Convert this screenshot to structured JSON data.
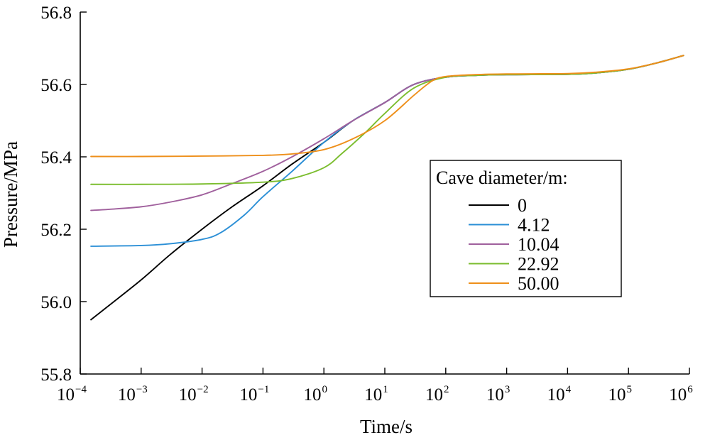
{
  "chart_data": {
    "type": "line",
    "xlabel": "Time/s",
    "ylabel": "Pressure/MPa",
    "x_scale": "log",
    "xlim": [
      0.0001,
      1000000
    ],
    "ylim": [
      55.8,
      56.8
    ],
    "x_ticks": [
      {
        "base": "10",
        "exp": "−4"
      },
      {
        "base": "10",
        "exp": "−3"
      },
      {
        "base": "10",
        "exp": "−2"
      },
      {
        "base": "10",
        "exp": "−1"
      },
      {
        "base": "10",
        "exp": "0"
      },
      {
        "base": "10",
        "exp": "1"
      },
      {
        "base": "10",
        "exp": "2"
      },
      {
        "base": "10",
        "exp": "3"
      },
      {
        "base": "10",
        "exp": "4"
      },
      {
        "base": "10",
        "exp": "5"
      },
      {
        "base": "10",
        "exp": "6"
      }
    ],
    "y_ticks": [
      "55.8",
      "56.0",
      "56.2",
      "56.4",
      "56.6",
      "56.8"
    ],
    "grid": false,
    "legend": {
      "title": "Cave diameter/m:",
      "position": "right"
    },
    "series": [
      {
        "name": "0",
        "color": "#000000",
        "x": [
          0.00015,
          0.0003,
          0.001,
          0.003,
          0.01,
          0.03,
          0.1,
          0.3,
          1,
          3,
          10,
          30,
          100,
          300,
          1000,
          10000,
          30000,
          100000,
          300000,
          800000
        ],
        "y": [
          55.95,
          55.99,
          56.06,
          56.13,
          56.2,
          56.26,
          56.32,
          56.38,
          56.44,
          56.5,
          56.55,
          56.6,
          56.62,
          56.625,
          56.627,
          56.628,
          56.632,
          56.642,
          56.66,
          56.68
        ]
      },
      {
        "name": "4.12",
        "color": "#2b8fd6",
        "x": [
          0.00015,
          0.001,
          0.003,
          0.01,
          0.02,
          0.05,
          0.1,
          0.3,
          1,
          3,
          10,
          30,
          100,
          300,
          1000,
          10000,
          30000,
          100000,
          300000,
          800000
        ],
        "y": [
          56.153,
          56.155,
          56.16,
          56.172,
          56.19,
          56.24,
          56.29,
          56.36,
          56.44,
          56.5,
          56.55,
          56.6,
          56.62,
          56.625,
          56.627,
          56.628,
          56.632,
          56.642,
          56.66,
          56.68
        ]
      },
      {
        "name": "10.04",
        "color": "#a0609d",
        "x": [
          0.00015,
          0.0003,
          0.001,
          0.003,
          0.01,
          0.03,
          0.1,
          0.3,
          1,
          3,
          10,
          30,
          100,
          300,
          1000,
          10000,
          30000,
          100000,
          300000,
          800000
        ],
        "y": [
          56.252,
          56.255,
          56.262,
          56.275,
          56.295,
          56.325,
          56.36,
          56.4,
          56.45,
          56.5,
          56.55,
          56.6,
          56.62,
          56.625,
          56.627,
          56.628,
          56.632,
          56.642,
          56.66,
          56.68
        ]
      },
      {
        "name": "22.92",
        "color": "#7bbd2e",
        "x": [
          0.00015,
          0.001,
          0.01,
          0.1,
          0.3,
          1,
          2,
          5,
          10,
          30,
          100,
          300,
          1000,
          10000,
          30000,
          100000,
          300000,
          800000
        ],
        "y": [
          56.324,
          56.324,
          56.325,
          56.33,
          56.34,
          56.37,
          56.41,
          56.47,
          56.52,
          56.59,
          56.62,
          56.625,
          56.627,
          56.628,
          56.632,
          56.642,
          56.66,
          56.68
        ]
      },
      {
        "name": "50.00",
        "color": "#ee8f1a",
        "x": [
          0.00015,
          0.001,
          0.01,
          0.1,
          0.3,
          1,
          3,
          10,
          30,
          60,
          100,
          300,
          1000,
          10000,
          30000,
          100000,
          300000,
          800000
        ],
        "y": [
          56.401,
          56.401,
          56.402,
          56.404,
          56.408,
          56.42,
          56.45,
          56.5,
          56.57,
          56.61,
          56.622,
          56.627,
          56.629,
          56.63,
          56.634,
          56.643,
          56.66,
          56.68
        ]
      }
    ]
  }
}
